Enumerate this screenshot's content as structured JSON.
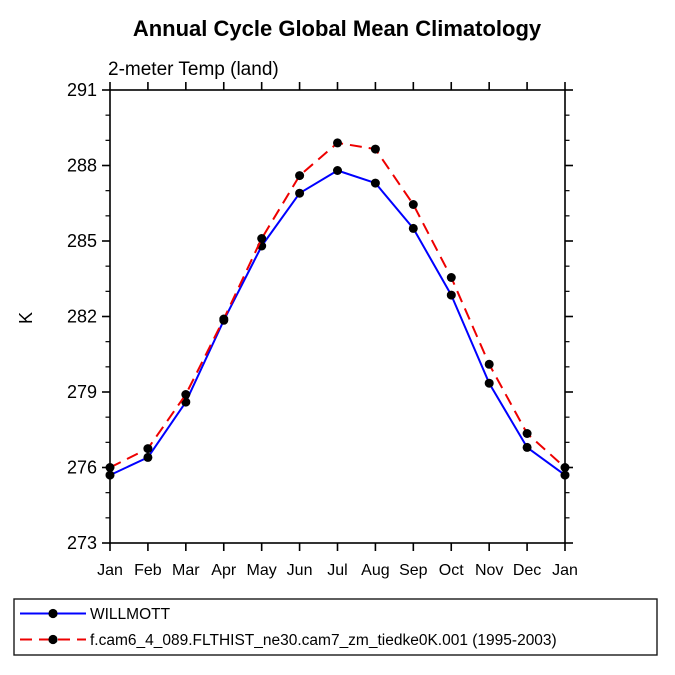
{
  "chart_data": {
    "type": "line",
    "title": "Annual Cycle Global Mean Climatology",
    "subtitle": "2-meter Temp (land)",
    "ylabel": "K",
    "xlabel": "",
    "ylim": [
      273,
      291
    ],
    "y_major_ticks": [
      273,
      276,
      279,
      282,
      285,
      288,
      291
    ],
    "y_minor_step": 1,
    "grid": false,
    "legend_position": "bottom-left-box",
    "categories": [
      "Jan",
      "Feb",
      "Mar",
      "Apr",
      "May",
      "Jun",
      "Jul",
      "Aug",
      "Sep",
      "Oct",
      "Nov",
      "Dec",
      "Jan"
    ],
    "series": [
      {
        "name": "WILLMOTT",
        "color": "#0000ff",
        "line_style": "solid",
        "marker": "filled-circle",
        "marker_color": "#000000",
        "values": [
          275.7,
          276.4,
          278.6,
          281.85,
          284.8,
          286.9,
          287.8,
          287.3,
          285.5,
          282.85,
          279.35,
          276.8,
          275.7
        ]
      },
      {
        "name": "f.cam6_4_089.FLTHIST_ne30.cam7_zm_tiedke0K.001 (1995-2003)",
        "color": "#ee0000",
        "line_style": "dashed",
        "marker": "filled-circle",
        "marker_color": "#000000",
        "values": [
          276.0,
          276.75,
          278.9,
          281.9,
          285.1,
          287.6,
          288.9,
          288.65,
          286.45,
          283.55,
          280.1,
          277.35,
          276.0
        ]
      }
    ]
  }
}
